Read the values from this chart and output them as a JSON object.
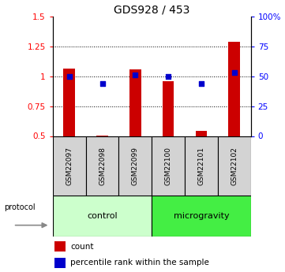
{
  "title": "GDS928 / 453",
  "samples": [
    "GSM22097",
    "GSM22098",
    "GSM22099",
    "GSM22100",
    "GSM22101",
    "GSM22102"
  ],
  "count_values": [
    1.065,
    0.505,
    1.055,
    0.955,
    0.545,
    1.285
  ],
  "count_base": 0.5,
  "percentile_values": [
    0.5,
    0.44,
    0.51,
    0.5,
    0.44,
    0.53
  ],
  "ylim_left": [
    0.5,
    1.5
  ],
  "ylim_right": [
    0,
    100
  ],
  "yticks_left": [
    0.5,
    0.75,
    1.0,
    1.25,
    1.5
  ],
  "yticks_right": [
    0,
    25,
    50,
    75,
    100
  ],
  "ytick_labels_left": [
    "0.5",
    "0.75",
    "1",
    "1.25",
    "1.5"
  ],
  "ytick_labels_right": [
    "0",
    "25",
    "50",
    "75",
    "100%"
  ],
  "bar_color": "#cc0000",
  "dot_color": "#0000cc",
  "ctrl_color": "#ccffcc",
  "micro_color": "#44ee44",
  "sample_box_color": "#d3d3d3",
  "legend_count_label": "count",
  "legend_percentile_label": "percentile rank within the sample",
  "bar_width": 0.35,
  "dot_size": 22,
  "grid_yticks": [
    0.75,
    1.0,
    1.25
  ]
}
